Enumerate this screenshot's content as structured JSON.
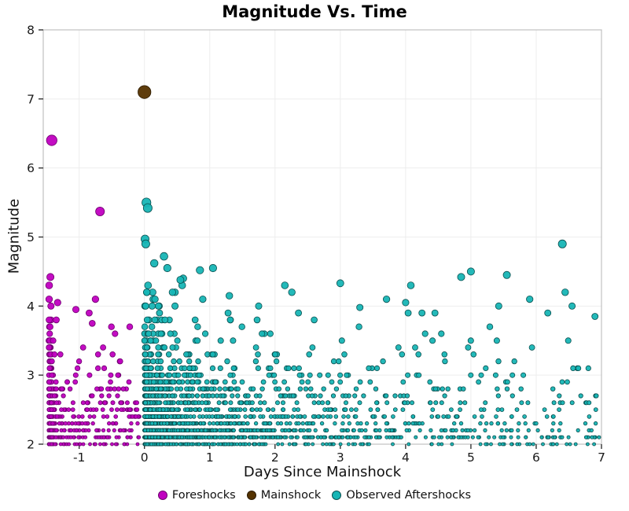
{
  "chart_data": {
    "type": "scatter",
    "title": "Magnitude Vs. Time",
    "xlabel": "Days Since Mainshock",
    "ylabel": "Magnitude",
    "xlim": [
      -1.55,
      7.0
    ],
    "ylim": [
      2,
      8
    ],
    "xticks": [
      -1,
      0,
      1,
      2,
      3,
      4,
      5,
      6,
      7
    ],
    "yticks": [
      2,
      3,
      4,
      5,
      6,
      7,
      8
    ],
    "grid": true,
    "legend_position": "bottom",
    "marker": {
      "base_radius": 2.0,
      "radius_per_magnitude": 1.15,
      "edge_width": 0.8
    },
    "series": [
      {
        "name": "Foreshocks",
        "color": "#c000c0",
        "edge_color": "#6e006e",
        "notable_points": [
          [
            -1.42,
            6.4
          ],
          [
            -0.68,
            5.37
          ],
          [
            -1.44,
            4.42
          ],
          [
            -1.46,
            4.3
          ],
          [
            -0.75,
            4.1
          ],
          [
            -1.05,
            3.95
          ],
          [
            -0.8,
            3.75
          ],
          [
            -0.45,
            3.6
          ],
          [
            -1.33,
            4.05
          ]
        ],
        "cloud": {
          "seed": 101,
          "band_count": 360,
          "band_x_min": -1.465,
          "band_x_spread": 0.03,
          "band_x_max": -1.27,
          "scatter_count": 260,
          "scatter_x_min": -1.46,
          "scatter_x_max": -0.08,
          "scatter_bias": 1.2,
          "mag_min": 2.0,
          "mag_decay": 0.42,
          "mag_max": 4.35
        }
      },
      {
        "name": "Mainshock",
        "color": "#553300",
        "edge_color": "#2b1a00",
        "points": [
          [
            0.0,
            7.1
          ]
        ]
      },
      {
        "name": "Observed Aftershocks",
        "color": "#17b5b5",
        "edge_color": "#0a4f4f",
        "notable_points": [
          [
            0.03,
            5.5
          ],
          [
            0.05,
            5.42
          ],
          [
            0.01,
            4.97
          ],
          [
            0.02,
            4.9
          ],
          [
            0.3,
            4.72
          ],
          [
            0.35,
            4.55
          ],
          [
            0.15,
            4.62
          ],
          [
            0.55,
            4.38
          ],
          [
            0.85,
            4.52
          ],
          [
            1.05,
            4.55
          ],
          [
            1.3,
            4.15
          ],
          [
            2.15,
            4.3
          ],
          [
            3.0,
            4.33
          ],
          [
            3.3,
            3.98
          ],
          [
            4.0,
            4.05
          ],
          [
            4.85,
            4.42
          ],
          [
            5.0,
            4.5
          ],
          [
            5.55,
            4.45
          ],
          [
            5.9,
            4.1
          ],
          [
            6.4,
            4.9
          ],
          [
            6.9,
            3.85
          ],
          [
            6.55,
            4.0
          ],
          [
            4.45,
            3.9
          ],
          [
            2.6,
            3.8
          ],
          [
            1.75,
            4.0
          ]
        ],
        "cloud": {
          "seed": 202,
          "count": 2500,
          "t_max": 7.0,
          "omori_c": 0.04,
          "mag_min": 2.0,
          "mag_decay": 0.42,
          "mag_max": 4.45
        }
      }
    ]
  },
  "colors": {
    "grid": "#ededed",
    "spine": "#c0c0c0",
    "tick": "#333333",
    "tick_label": "#1a1a1a"
  }
}
